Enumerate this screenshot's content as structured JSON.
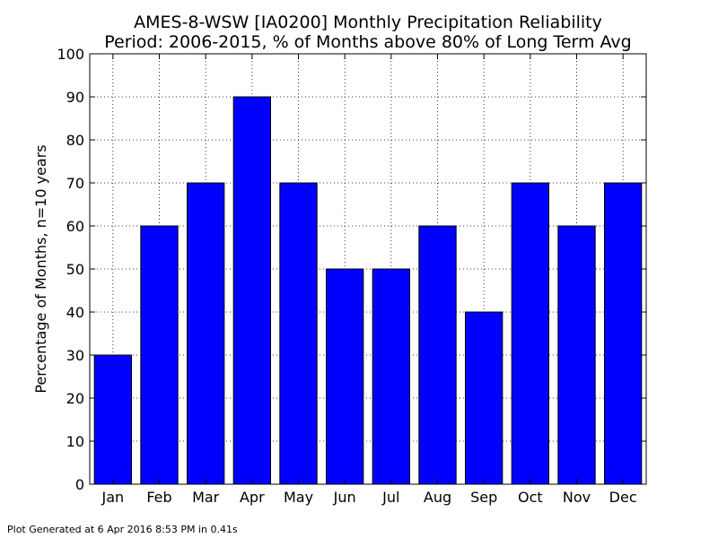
{
  "chart_data": {
    "type": "bar",
    "title": [
      "AMES-8-WSW [IA0200] Monthly Precipitation Reliability",
      "Period: 2006-2015, % of Months above 80% of Long Term Avg"
    ],
    "xlabel": "",
    "ylabel": "Percentage of Months, n=10 years",
    "categories": [
      "Jan",
      "Feb",
      "Mar",
      "Apr",
      "May",
      "Jun",
      "Jul",
      "Aug",
      "Sep",
      "Oct",
      "Nov",
      "Dec"
    ],
    "values": [
      30,
      60,
      70,
      90,
      70,
      50,
      50,
      60,
      40,
      70,
      60,
      70
    ],
    "ylim": [
      0,
      100
    ],
    "yticks": [
      0,
      10,
      20,
      30,
      40,
      50,
      60,
      70,
      80,
      90,
      100
    ],
    "grid": true,
    "bar_color": "#0000ff",
    "edge_color": "#000000"
  },
  "footer": "Plot Generated at 6 Apr 2016 8:53 PM in 0.41s"
}
